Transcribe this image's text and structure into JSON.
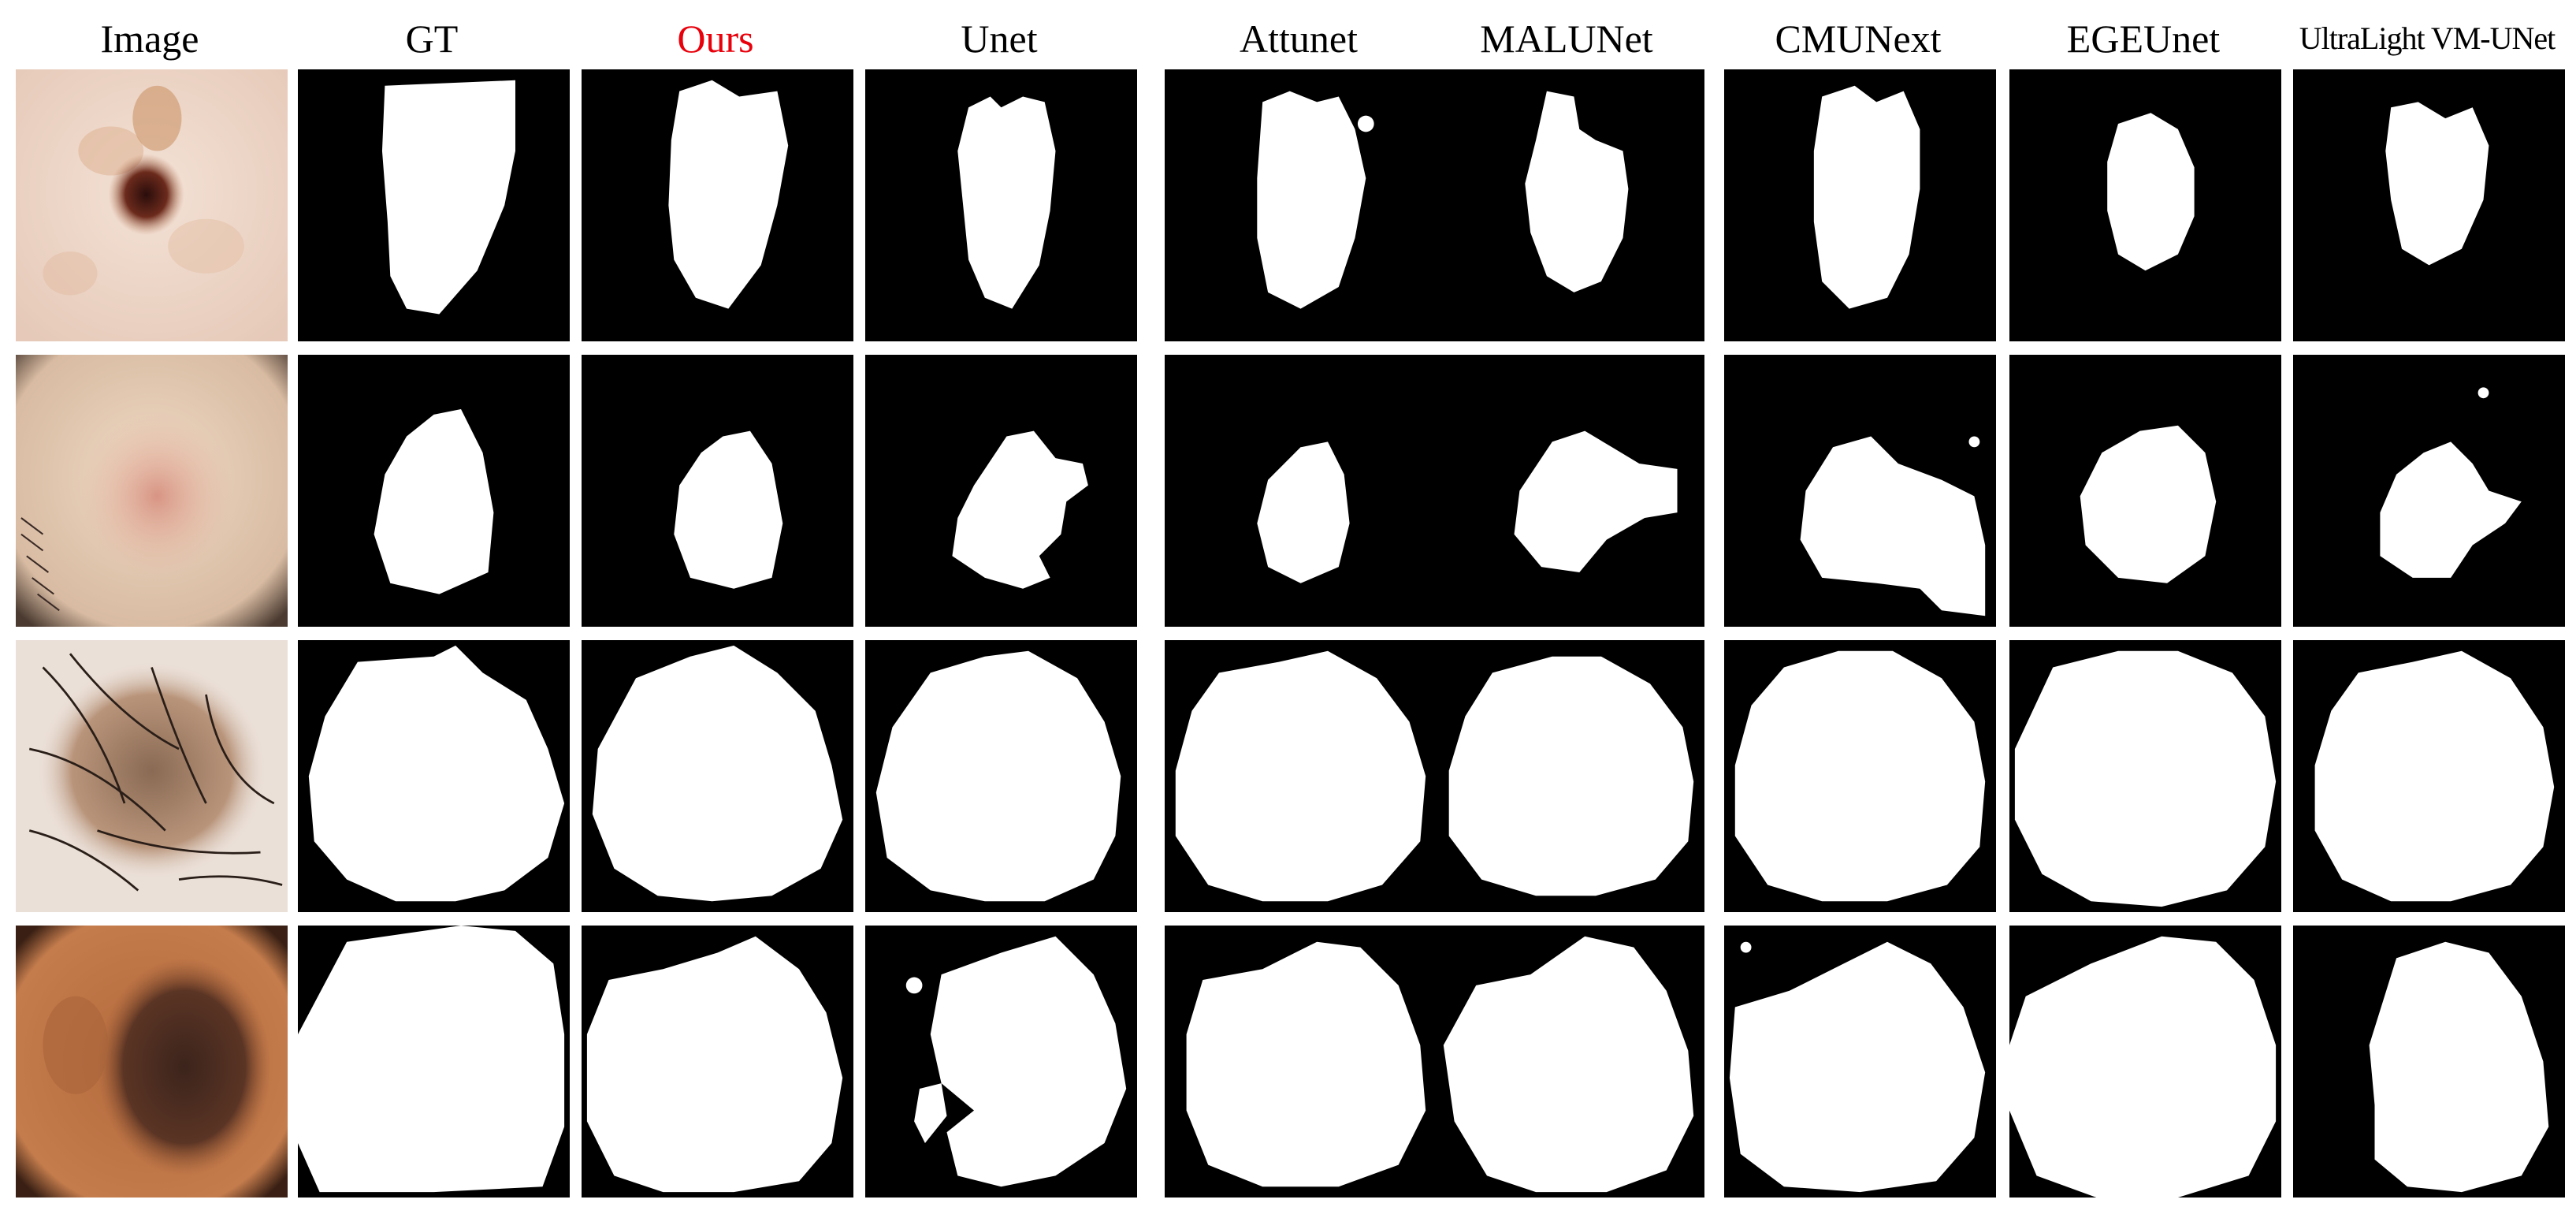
{
  "figure": {
    "columns": [
      {
        "id": "image",
        "label": "Image",
        "color": "#000000"
      },
      {
        "id": "gt",
        "label": "GT",
        "color": "#000000"
      },
      {
        "id": "ours",
        "label": "Ours",
        "color": "#e8000b"
      },
      {
        "id": "unet",
        "label": "Unet",
        "color": "#000000"
      },
      {
        "id": "attunet",
        "label": "Attunet",
        "color": "#000000"
      },
      {
        "id": "malunet",
        "label": "MALUNet",
        "color": "#000000"
      },
      {
        "id": "cmunext",
        "label": "CMUNext",
        "color": "#000000"
      },
      {
        "id": "egeunet",
        "label": "EGEUnet",
        "color": "#000000"
      },
      {
        "id": "ultralight",
        "label": "UltraLight VM-UNet",
        "color": "#000000"
      }
    ],
    "rows": [
      {
        "id": "sample-1",
        "description": "small dark lesion on pale skin"
      },
      {
        "id": "sample-2",
        "description": "pink lesion with hair at left edge"
      },
      {
        "id": "sample-3",
        "description": "hairy brown lesion"
      },
      {
        "id": "sample-4",
        "description": "large dark brown lesion"
      }
    ],
    "mask_colors": {
      "background": "#000000",
      "foreground": "#ffffff"
    }
  }
}
